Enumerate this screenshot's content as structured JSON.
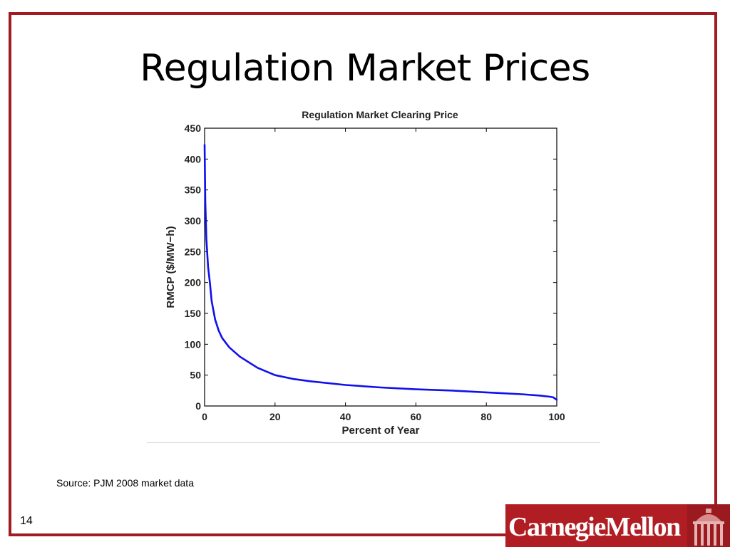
{
  "slide": {
    "title": "Regulation Market Prices",
    "source": "Source: PJM 2008 market data",
    "page_number": "14"
  },
  "logo": {
    "text": "CarnegieMellon"
  },
  "colors": {
    "frame": "#a01c22",
    "logo_bg": "#b01e23",
    "series": "#1010ee"
  },
  "chart_data": {
    "type": "line",
    "title": "Regulation Market Clearing Price",
    "xlabel": "Percent of Year",
    "ylabel": "RMCP ($/MW−h)",
    "xlim": [
      0,
      100
    ],
    "ylim": [
      0,
      450
    ],
    "xticks": [
      0,
      20,
      40,
      60,
      80,
      100
    ],
    "yticks": [
      0,
      50,
      100,
      150,
      200,
      250,
      300,
      350,
      400,
      450
    ],
    "grid": false,
    "series": [
      {
        "x": [
          0,
          0.2,
          0.5,
          1,
          1.5,
          2,
          3,
          4,
          5,
          7,
          10,
          15,
          20,
          25,
          30,
          40,
          50,
          60,
          70,
          80,
          90,
          95,
          98,
          99,
          100
        ],
        "y": [
          423,
          330,
          270,
          225,
          200,
          170,
          140,
          122,
          110,
          95,
          80,
          62,
          50,
          44,
          40,
          34,
          30,
          27,
          25,
          22,
          19,
          17,
          15,
          14,
          10
        ]
      }
    ]
  }
}
